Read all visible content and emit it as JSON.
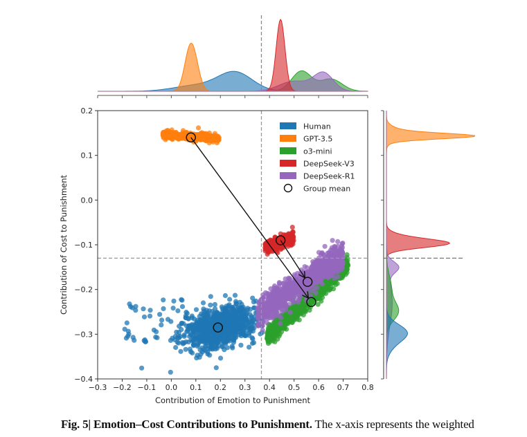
{
  "chart_data": {
    "type": "scatter",
    "xlabel": "Contribution of Emotion to Punishment",
    "ylabel": "Contribution of Cost to Punishment",
    "xlim": [
      -0.3,
      0.8
    ],
    "ylim": [
      -0.4,
      0.2
    ],
    "xticks": [
      "−0.3",
      "−0.2",
      "−0.1",
      "0.0",
      "0.1",
      "0.2",
      "0.3",
      "0.4",
      "0.5",
      "0.6",
      "0.7",
      "0.8"
    ],
    "yticks": [
      "0.2",
      "0.1",
      "0.0",
      "−0.1",
      "−0.2",
      "−0.3",
      "−0.4"
    ],
    "xtick_values": [
      -0.3,
      -0.2,
      -0.1,
      0.0,
      0.1,
      0.2,
      0.3,
      0.4,
      0.5,
      0.6,
      0.7,
      0.8
    ],
    "ytick_values": [
      0.2,
      0.1,
      0.0,
      -0.1,
      -0.2,
      -0.3,
      -0.4
    ],
    "reference_lines": {
      "x": 0.367,
      "y": -0.13
    },
    "legend_placement": "upper-right",
    "series": [
      {
        "name": "Human",
        "color": "#1f77b4",
        "mean": [
          0.19,
          -0.285
        ],
        "x_range": [
          -0.22,
          0.37
        ],
        "y_range": [
          -0.35,
          -0.215
        ]
      },
      {
        "name": "GPT-3.5",
        "color": "#ff7f0e",
        "mean": [
          0.08,
          0.14
        ],
        "x_range": [
          -0.04,
          0.2
        ],
        "y_range": [
          0.128,
          0.155
        ]
      },
      {
        "name": "o3-mini",
        "color": "#2ca02c",
        "mean": [
          0.57,
          -0.228
        ],
        "x_range": [
          0.37,
          0.72
        ],
        "y_range": [
          -0.32,
          -0.145
        ]
      },
      {
        "name": "DeepSeek-V3",
        "color": "#d62728",
        "mean": [
          0.445,
          -0.09
        ],
        "x_range": [
          0.37,
          0.5
        ],
        "y_range": [
          -0.115,
          -0.075
        ]
      },
      {
        "name": "DeepSeek-R1",
        "color": "#9467bd",
        "mean": [
          0.555,
          -0.183
        ],
        "x_range": [
          0.34,
          0.7
        ],
        "y_range": [
          -0.28,
          -0.12
        ]
      }
    ],
    "group_mean_label": "Group mean",
    "arrows": [
      {
        "from": "GPT-3.5",
        "to": "o3-mini"
      },
      {
        "from": "DeepSeek-V3",
        "to": "DeepSeek-R1"
      }
    ],
    "marginal_x_peaks": [
      {
        "name": "Human",
        "peak_x": 0.26,
        "rel_height": 0.28
      },
      {
        "name": "GPT-3.5",
        "peak_x": 0.08,
        "rel_height": 0.62
      },
      {
        "name": "o3-mini",
        "peak_x": 0.53,
        "rel_height": 0.3
      },
      {
        "name": "DeepSeek-V3",
        "peak_x": 0.445,
        "rel_height": 1.0
      },
      {
        "name": "DeepSeek-R1",
        "peak_x": 0.62,
        "rel_height": 0.32
      }
    ],
    "marginal_y_peaks": [
      {
        "name": "Human",
        "peak_y": -0.295,
        "rel_height": 0.27
      },
      {
        "name": "GPT-3.5",
        "peak_y": 0.143,
        "rel_height": 1.0
      },
      {
        "name": "o3-mini",
        "peak_y": -0.245,
        "rel_height": 0.17
      },
      {
        "name": "DeepSeek-V3",
        "peak_y": -0.1,
        "rel_height": 0.65
      },
      {
        "name": "DeepSeek-R1",
        "peak_y": -0.15,
        "rel_height": 0.16
      }
    ]
  },
  "caption": {
    "bold": "Fig. 5| Emotion–Cost Contributions to Punishment.",
    "text": " The x-axis represents the weighted"
  }
}
